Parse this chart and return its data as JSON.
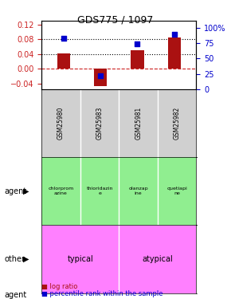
{
  "title": "GDS775 / 1097",
  "samples": [
    "GSM25980",
    "GSM25983",
    "GSM25981",
    "GSM25982"
  ],
  "log_ratios": [
    0.042,
    -0.048,
    0.051,
    0.085
  ],
  "percentile_ranks": [
    0.83,
    0.22,
    0.74,
    0.9
  ],
  "agents": [
    "chlorprom\nazine",
    "thioridazin\ne",
    "olanzap\nine",
    "quetiapi\nne"
  ],
  "agent_colors": [
    "#90ee90",
    "#90ee90",
    "#90ee90",
    "#90ee90"
  ],
  "other_groups": [
    [
      "typical",
      2
    ],
    [
      "atypical",
      2
    ]
  ],
  "other_colors": [
    "#ff80ff",
    "#ff80ff"
  ],
  "bar_color": "#aa1111",
  "dot_color": "#0000cc",
  "ylim_left": [
    -0.055,
    0.13
  ],
  "ylim_right": [
    0,
    112
  ],
  "yticks_left": [
    -0.04,
    0.0,
    0.04,
    0.08,
    0.12
  ],
  "yticks_right": [
    0,
    25,
    50,
    75,
    100
  ],
  "hlines": [
    0.0,
    0.04,
    0.08
  ],
  "hline_styles": [
    "--",
    ":",
    ":"
  ],
  "hline_colors": [
    "#cc2222",
    "black",
    "black"
  ],
  "bg_color": "#ffffff",
  "tick_label_color_left": "#cc2222",
  "tick_label_color_right": "#0000cc"
}
